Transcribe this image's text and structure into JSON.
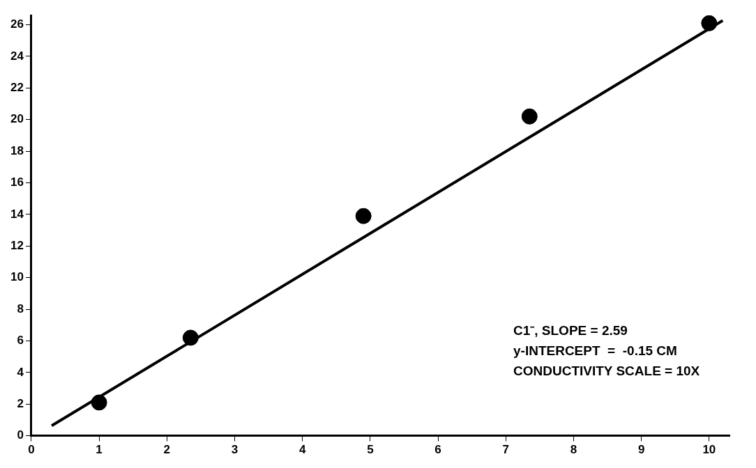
{
  "chart_data": {
    "type": "scatter",
    "xlim": [
      0,
      10.3
    ],
    "ylim": [
      0,
      26.6
    ],
    "xticks": [
      0,
      1,
      2,
      3,
      4,
      5,
      6,
      7,
      8,
      9,
      10
    ],
    "yticks": [
      0,
      2,
      4,
      6,
      8,
      10,
      12,
      14,
      16,
      18,
      20,
      22,
      24,
      26
    ],
    "grid": false,
    "legend": false,
    "series": [
      {
        "type": "scatter",
        "marker": "circle",
        "color": "#000000",
        "x": [
          1.0,
          2.35,
          4.9,
          7.35,
          10.0
        ],
        "values": [
          2.1,
          6.2,
          13.9,
          20.2,
          26.1
        ]
      },
      {
        "type": "line",
        "color": "#000000",
        "line_style": "solid",
        "x": [
          0.3,
          10.2
        ],
        "values": [
          0.63,
          26.27
        ]
      }
    ],
    "annotations": [
      "C1⁻, SLOPE = 2.59",
      "y-INTERCEPT  =  -0.15 CM",
      "CONDUCTIVITY SCALE = 10X"
    ]
  }
}
